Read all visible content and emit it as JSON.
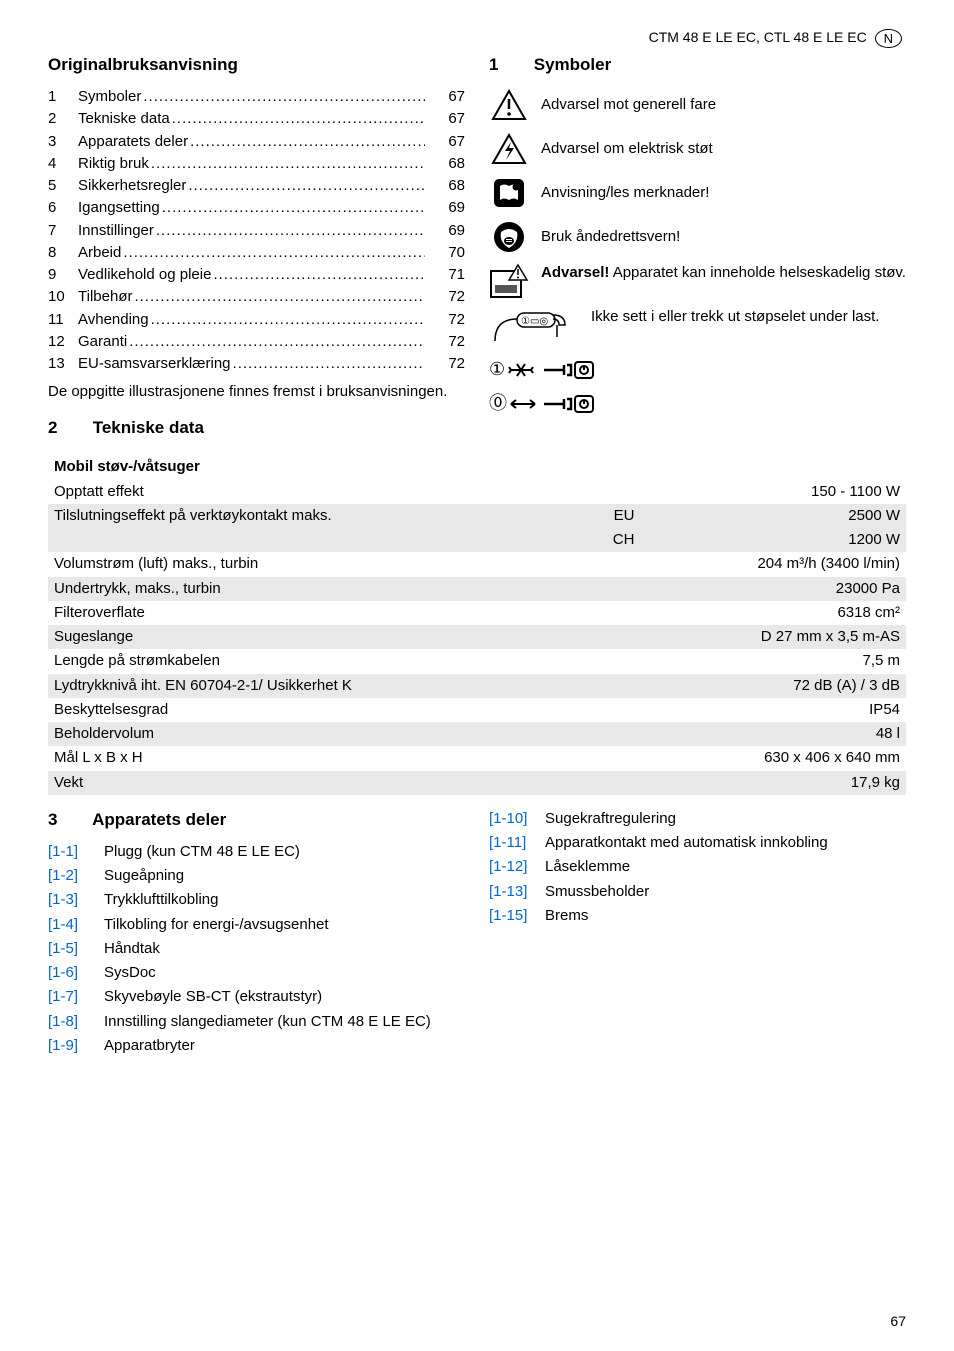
{
  "header": {
    "model": "CTM 48 E LE EC, CTL 48 E LE EC",
    "badge": "N"
  },
  "left": {
    "title": "Originalbruksanvisning",
    "toc": [
      {
        "n": "1",
        "label": "Symboler",
        "page": "67"
      },
      {
        "n": "2",
        "label": "Tekniske data",
        "page": "67"
      },
      {
        "n": "3",
        "label": "Apparatets deler",
        "page": "67"
      },
      {
        "n": "4",
        "label": "Riktig bruk",
        "page": "68"
      },
      {
        "n": "5",
        "label": "Sikkerhetsregler",
        "page": "68"
      },
      {
        "n": "6",
        "label": "Igangsetting",
        "page": "69"
      },
      {
        "n": "7",
        "label": "Innstillinger",
        "page": "69"
      },
      {
        "n": "8",
        "label": "Arbeid",
        "page": "70"
      },
      {
        "n": "9",
        "label": "Vedlikehold og pleie",
        "page": "71"
      },
      {
        "n": "10",
        "label": "Tilbehør",
        "page": "72"
      },
      {
        "n": "11",
        "label": "Avhending",
        "page": "72"
      },
      {
        "n": "12",
        "label": "Garanti",
        "page": "72"
      },
      {
        "n": "13",
        "label": "EU-samsvarserklæring",
        "page": "72"
      }
    ],
    "note": "De oppgitte illustrasjonene finnes fremst i bruksanvisningen."
  },
  "right": {
    "num": "1",
    "title": "Symboler",
    "items": [
      {
        "text": "Advarsel mot generell fare"
      },
      {
        "text": "Advarsel om elektrisk støt"
      },
      {
        "text": "Anvisning/les merknader!"
      },
      {
        "text": "Bruk åndedrettsvern!"
      },
      {
        "bold": "Advarsel!",
        "text": " Apparatet kan inneholde helseskadelig støv."
      },
      {
        "text": "Ikke sett i eller trekk ut støpselet under last."
      }
    ]
  },
  "sec2": {
    "num": "2",
    "title": "Tekniske data"
  },
  "spec": {
    "header": "Mobil støv-/våtsuger",
    "rows": [
      {
        "label": "Opptatt effekt",
        "mid": "",
        "val": "150 - 1100 W"
      },
      {
        "label": "Tilslutningseffekt på verktøykontakt maks.",
        "mid": "EU",
        "val": "2500 W"
      },
      {
        "label": "",
        "mid": "CH",
        "val": "1200 W"
      },
      {
        "label": "Volumstrøm (luft) maks., turbin",
        "mid": "",
        "val": "204 m³/h (3400 l/min)"
      },
      {
        "label": "Undertrykk, maks., turbin",
        "mid": "",
        "val": "23000 Pa"
      },
      {
        "label": "Filteroverflate",
        "mid": "",
        "val": "6318 cm²"
      },
      {
        "label": "Sugeslange",
        "mid": "",
        "val": "D 27 mm x 3,5 m-AS"
      },
      {
        "label": "Lengde på strømkabelen",
        "mid": "",
        "val": "7,5 m"
      },
      {
        "label": "Lydtrykknivå iht. EN 60704-2-1/ Usikkerhet K",
        "mid": "",
        "val": "72 dB (A) / 3 dB"
      },
      {
        "label": "Beskyttelsesgrad",
        "mid": "",
        "val": "IP54"
      },
      {
        "label": "Beholdervolum",
        "mid": "",
        "val": "48 l"
      },
      {
        "label": "Mål L x B x H",
        "mid": "",
        "val": "630 x 406 x 640 mm"
      },
      {
        "label": "Vekt",
        "mid": "",
        "val": "17,9 kg"
      }
    ]
  },
  "sec3": {
    "num": "3",
    "title": "Apparatets deler",
    "left": [
      {
        "ref": "[1-1]",
        "label": "Plugg (kun CTM 48 E LE EC)"
      },
      {
        "ref": "[1-2]",
        "label": "Sugeåpning"
      },
      {
        "ref": "[1-3]",
        "label": "Trykklufttilkobling"
      },
      {
        "ref": "[1-4]",
        "label": "Tilkobling for energi-/avsugsenhet"
      },
      {
        "ref": "[1-5]",
        "label": "Håndtak"
      },
      {
        "ref": "[1-6]",
        "label": "SysDoc"
      },
      {
        "ref": "[1-7]",
        "label": "Skyvebøyle SB-CT (ekstrautstyr)"
      },
      {
        "ref": "[1-8]",
        "label": "Innstilling slangediameter (kun CTM 48 E LE EC)"
      },
      {
        "ref": "[1-9]",
        "label": "Apparatbryter"
      }
    ],
    "right": [
      {
        "ref": "[1-10]",
        "label": "Sugekraftregulering"
      },
      {
        "ref": "[1-11]",
        "label": "Apparatkontakt med automatisk innkobling"
      },
      {
        "ref": "[1-12]",
        "label": "Låseklemme"
      },
      {
        "ref": "[1-13]",
        "label": "Smussbeholder"
      },
      {
        "ref": "[1-15]",
        "label": "Brems"
      }
    ]
  },
  "pagenum": "67",
  "colors": {
    "link": "#0066cc",
    "bg_shade": "#e8e8e8",
    "bg_head": "#c8c8c8"
  }
}
